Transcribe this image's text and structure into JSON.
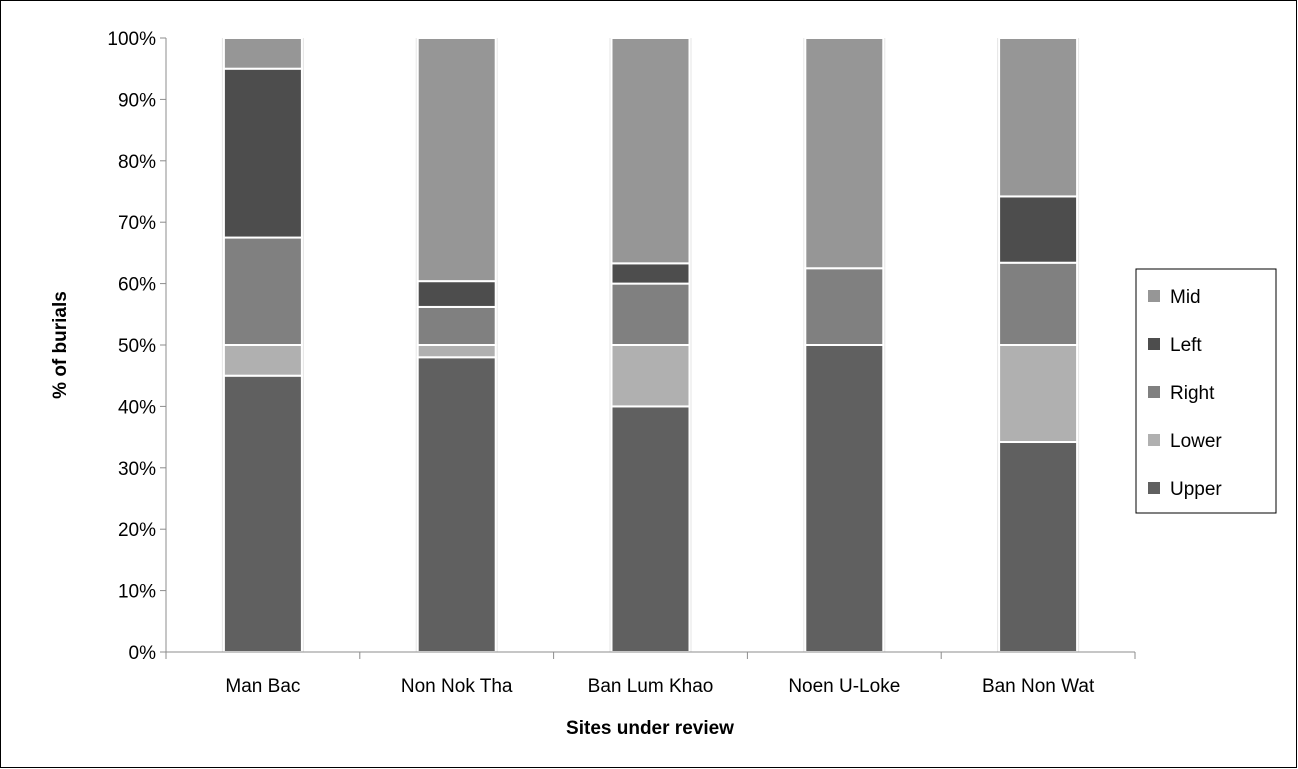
{
  "chart_data": {
    "type": "bar",
    "stacked": true,
    "percent_stacked": true,
    "categories": [
      "Man Bac",
      "Non Nok Tha",
      "Ban Lum Khao",
      "Noen U-Loke",
      "Ban Non Wat"
    ],
    "series": [
      {
        "name": "Upper",
        "values": [
          45,
          48,
          40,
          50,
          34.2
        ],
        "color": "#606060"
      },
      {
        "name": "Lower",
        "values": [
          5,
          2,
          10,
          0,
          15.8
        ],
        "color": "#b0b0b0"
      },
      {
        "name": "Right",
        "values": [
          17.5,
          6.2,
          10,
          12.5,
          13.4
        ],
        "color": "#808080"
      },
      {
        "name": "Left",
        "values": [
          27.5,
          4.2,
          3.3,
          0,
          10.8
        ],
        "color": "#4d4d4d"
      },
      {
        "name": "Mid",
        "values": [
          5,
          39.6,
          36.7,
          37.5,
          25.8
        ],
        "color": "#969696"
      }
    ],
    "xlabel": "Sites under review",
    "ylabel": "% of burials",
    "ylim": [
      0,
      100
    ],
    "yticks": [
      "0%",
      "10%",
      "20%",
      "30%",
      "40%",
      "50%",
      "60%",
      "70%",
      "80%",
      "90%",
      "100%"
    ],
    "legend": "right",
    "legend_order": [
      "Mid",
      "Left",
      "Right",
      "Lower",
      "Upper"
    ],
    "grid": false
  }
}
